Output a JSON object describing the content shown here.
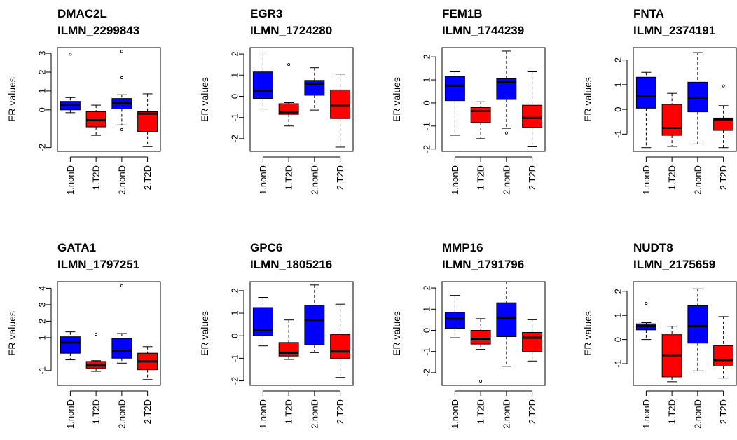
{
  "ylabel": "ER values",
  "colors": {
    "nonD": "#0000FF",
    "T2D": "#FF0000",
    "axis": "#000000"
  },
  "chart_data": [
    {
      "type": "box",
      "gene": "DMAC2L",
      "probe": "ILMN_2299843",
      "ylabel": "ER values",
      "ylim": [
        -2.2,
        3.3
      ],
      "yticks": [
        -2,
        0,
        1,
        2,
        3
      ],
      "categories": [
        "1.nonD",
        "1.T2D",
        "2.nonD",
        "2.T2D"
      ],
      "boxes": [
        {
          "min": -0.15,
          "q1": 0.0,
          "median": 0.25,
          "q3": 0.45,
          "max": 0.65,
          "outliers": [
            2.95
          ]
        },
        {
          "min": -1.35,
          "q1": -0.9,
          "median": -0.55,
          "q3": -0.1,
          "max": 0.25,
          "outliers": []
        },
        {
          "min": -0.8,
          "q1": 0.05,
          "median": 0.35,
          "q3": 0.6,
          "max": 0.8,
          "outliers": [
            3.1,
            1.7,
            -1.05
          ]
        },
        {
          "min": -1.95,
          "q1": -1.15,
          "median": -0.2,
          "q3": -0.1,
          "max": 0.85,
          "outliers": []
        }
      ]
    },
    {
      "type": "box",
      "gene": "EGR3",
      "probe": "ILMN_1724280",
      "ylabel": "ER values",
      "ylim": [
        -2.6,
        2.3
      ],
      "yticks": [
        -2,
        -1,
        0,
        1,
        2
      ],
      "categories": [
        "1.nonD",
        "1.T2D",
        "2.nonD",
        "2.T2D"
      ],
      "boxes": [
        {
          "min": -0.6,
          "q1": -0.1,
          "median": 0.25,
          "q3": 1.15,
          "max": 2.05,
          "outliers": []
        },
        {
          "min": -1.4,
          "q1": -0.85,
          "median": -0.75,
          "q3": -0.35,
          "max": -0.3,
          "outliers": [
            1.5
          ]
        },
        {
          "min": -0.65,
          "q1": 0.05,
          "median": 0.6,
          "q3": 0.75,
          "max": 1.35,
          "outliers": []
        },
        {
          "min": -2.4,
          "q1": -1.05,
          "median": -0.45,
          "q3": 0.3,
          "max": 1.05,
          "outliers": []
        }
      ]
    },
    {
      "type": "box",
      "gene": "FEM1B",
      "probe": "ILMN_1744239",
      "ylabel": "ER values",
      "ylim": [
        -2.1,
        2.4
      ],
      "yticks": [
        -2,
        -1,
        0,
        1,
        2
      ],
      "categories": [
        "1.nonD",
        "1.T2D",
        "2.nonD",
        "2.T2D"
      ],
      "boxes": [
        {
          "min": -1.4,
          "q1": 0.1,
          "median": 0.75,
          "q3": 1.15,
          "max": 1.35,
          "outliers": []
        },
        {
          "min": -1.55,
          "q1": -0.85,
          "median": -0.35,
          "q3": -0.2,
          "max": 0.05,
          "outliers": []
        },
        {
          "min": -1.1,
          "q1": 0.15,
          "median": 0.9,
          "q3": 1.05,
          "max": 2.25,
          "outliers": [
            -1.3
          ]
        },
        {
          "min": -1.9,
          "q1": -1.05,
          "median": -0.65,
          "q3": -0.1,
          "max": 1.35,
          "outliers": []
        }
      ]
    },
    {
      "type": "box",
      "gene": "FNTA",
      "probe": "ILMN_2374191",
      "ylabel": "ER values",
      "ylim": [
        -1.7,
        2.5
      ],
      "yticks": [
        -1,
        0,
        1,
        2
      ],
      "categories": [
        "1.nonD",
        "1.T2D",
        "2.nonD",
        "2.T2D"
      ],
      "boxes": [
        {
          "min": -1.55,
          "q1": 0.05,
          "median": 0.55,
          "q3": 1.3,
          "max": 1.5,
          "outliers": []
        },
        {
          "min": -1.5,
          "q1": -1.05,
          "median": -0.75,
          "q3": 0.2,
          "max": 0.65,
          "outliers": []
        },
        {
          "min": -1.4,
          "q1": -0.1,
          "median": 0.45,
          "q3": 1.1,
          "max": 2.3,
          "outliers": []
        },
        {
          "min": -1.55,
          "q1": -0.85,
          "median": -0.4,
          "q3": -0.35,
          "max": 0.15,
          "outliers": [
            0.95
          ]
        }
      ]
    },
    {
      "type": "box",
      "gene": "GATA1",
      "probe": "ILMN_1797251",
      "ylabel": "ER values",
      "ylim": [
        -1.9,
        4.4
      ],
      "yticks": [
        -1,
        1,
        2,
        3,
        4
      ],
      "categories": [
        "1.nonD",
        "1.T2D",
        "2.nonD",
        "2.T2D"
      ],
      "boxes": [
        {
          "min": -0.35,
          "q1": 0.05,
          "median": 0.7,
          "q3": 1.05,
          "max": 1.35,
          "outliers": []
        },
        {
          "min": -1.05,
          "q1": -0.85,
          "median": -0.7,
          "q3": -0.45,
          "max": -0.4,
          "outliers": [
            1.2
          ]
        },
        {
          "min": -0.55,
          "q1": -0.25,
          "median": 0.2,
          "q3": 0.95,
          "max": 1.25,
          "outliers": [
            4.15
          ]
        },
        {
          "min": -1.55,
          "q1": -0.95,
          "median": -0.45,
          "q3": 0.05,
          "max": 0.45,
          "outliers": []
        }
      ]
    },
    {
      "type": "box",
      "gene": "GPC6",
      "probe": "ILMN_1805216",
      "ylabel": "ER values",
      "ylim": [
        -2.2,
        2.4
      ],
      "yticks": [
        -2,
        -1,
        0,
        1,
        2
      ],
      "categories": [
        "1.nonD",
        "1.T2D",
        "2.nonD",
        "2.T2D"
      ],
      "boxes": [
        {
          "min": -0.45,
          "q1": 0.0,
          "median": 0.25,
          "q3": 1.25,
          "max": 1.7,
          "outliers": []
        },
        {
          "min": -1.05,
          "q1": -0.9,
          "median": -0.75,
          "q3": -0.3,
          "max": 0.7,
          "outliers": []
        },
        {
          "min": -0.75,
          "q1": -0.4,
          "median": 0.7,
          "q3": 1.35,
          "max": 2.25,
          "outliers": []
        },
        {
          "min": -1.85,
          "q1": -1.0,
          "median": -0.7,
          "q3": 0.05,
          "max": 1.4,
          "outliers": []
        }
      ]
    },
    {
      "type": "box",
      "gene": "MMP16",
      "probe": "ILMN_1791796",
      "ylabel": "ER values",
      "ylim": [
        -2.6,
        2.3
      ],
      "yticks": [
        -2,
        -1,
        0,
        1,
        2
      ],
      "categories": [
        "1.nonD",
        "1.T2D",
        "2.nonD",
        "2.T2D"
      ],
      "boxes": [
        {
          "min": -0.35,
          "q1": 0.1,
          "median": 0.55,
          "q3": 0.85,
          "max": 1.65,
          "outliers": []
        },
        {
          "min": -0.9,
          "q1": -0.65,
          "median": -0.4,
          "q3": 0.0,
          "max": 0.55,
          "outliers": [
            -2.4
          ]
        },
        {
          "min": -1.7,
          "q1": -0.3,
          "median": 0.6,
          "q3": 1.3,
          "max": 2.3,
          "outliers": []
        },
        {
          "min": -1.45,
          "q1": -1.0,
          "median": -0.35,
          "q3": -0.1,
          "max": 0.5,
          "outliers": []
        }
      ]
    },
    {
      "type": "box",
      "gene": "NUDT8",
      "probe": "ILMN_2175659",
      "ylabel": "ER values",
      "ylim": [
        -1.9,
        2.4
      ],
      "yticks": [
        -1,
        0,
        1,
        2
      ],
      "categories": [
        "1.nonD",
        "1.T2D",
        "2.nonD",
        "2.T2D"
      ],
      "boxes": [
        {
          "min": 0.0,
          "q1": 0.4,
          "median": 0.55,
          "q3": 0.65,
          "max": 0.7,
          "outliers": [
            1.5
          ]
        },
        {
          "min": -1.75,
          "q1": -1.55,
          "median": -0.65,
          "q3": 0.2,
          "max": 0.55,
          "outliers": []
        },
        {
          "min": -1.3,
          "q1": -0.15,
          "median": 0.55,
          "q3": 1.4,
          "max": 2.1,
          "outliers": []
        },
        {
          "min": -1.6,
          "q1": -1.1,
          "median": -0.85,
          "q3": -0.25,
          "max": 0.95,
          "outliers": []
        }
      ]
    }
  ]
}
